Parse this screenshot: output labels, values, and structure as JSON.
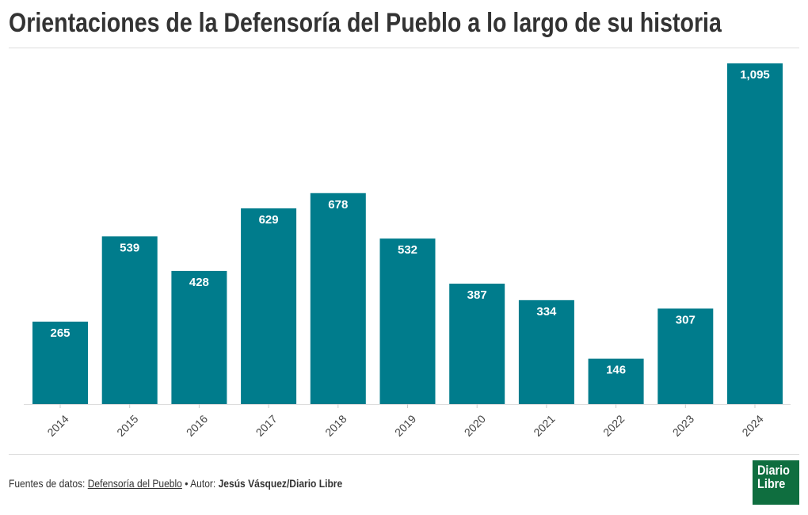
{
  "title": "Orientaciones de la Defensoría del Pueblo a lo largo de su historia",
  "chart_data": {
    "type": "bar",
    "title": "Orientaciones de la Defensoría del Pueblo a lo largo de su historia",
    "categories": [
      "2014",
      "2015",
      "2016",
      "2017",
      "2018",
      "2019",
      "2020",
      "2021",
      "2022",
      "2023",
      "2024"
    ],
    "values": [
      265,
      539,
      428,
      629,
      678,
      532,
      387,
      334,
      146,
      307,
      1095
    ],
    "labels": [
      "265",
      "539",
      "428",
      "629",
      "678",
      "532",
      "387",
      "334",
      "146",
      "307",
      "1,095"
    ],
    "xlabel": "",
    "ylabel": "",
    "ylim": [
      0,
      1095
    ],
    "grid": false,
    "bar_color": "#007c8c"
  },
  "footer": {
    "sources_label": "Fuentes de datos:",
    "source_link": "Defensoría del Pueblo",
    "separator": "•",
    "author_label": "Autor:",
    "author": "Jesús Vásquez/Diario Libre"
  },
  "logo": {
    "line1": "Diario",
    "line2": "Libre",
    "color": "#0f6e3f"
  }
}
